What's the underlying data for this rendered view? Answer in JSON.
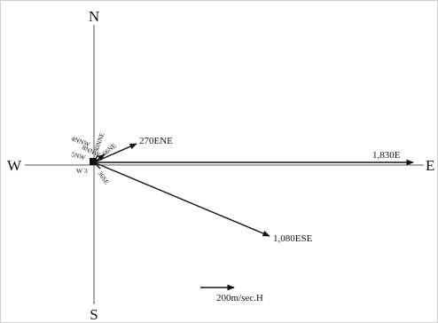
{
  "compass": {
    "north": "N",
    "south": "S",
    "east": "E",
    "west": "W"
  },
  "vectors": [
    {
      "label": "1,830E",
      "magnitude": 1830,
      "direction": "E"
    },
    {
      "label": "1,080ESE",
      "magnitude": 1080,
      "direction": "ESE"
    },
    {
      "label": "270ENE",
      "magnitude": 270,
      "direction": "ENE"
    },
    {
      "label": "66NE",
      "magnitude": 66,
      "direction": "NE"
    },
    {
      "label": "30NNE",
      "magnitude": 30,
      "direction": "NNE"
    },
    {
      "label": "36SE",
      "magnitude": 36,
      "direction": "SE"
    }
  ],
  "small_labels": {
    "nnw": "4NNW",
    "nw": "5NW",
    "nnw_low": "8NNW",
    "w": "W 3"
  },
  "scale": {
    "label": "200m/sec.H"
  },
  "colors": {
    "ink": "#111111",
    "axis": "#555555",
    "background": "#ffffff"
  }
}
